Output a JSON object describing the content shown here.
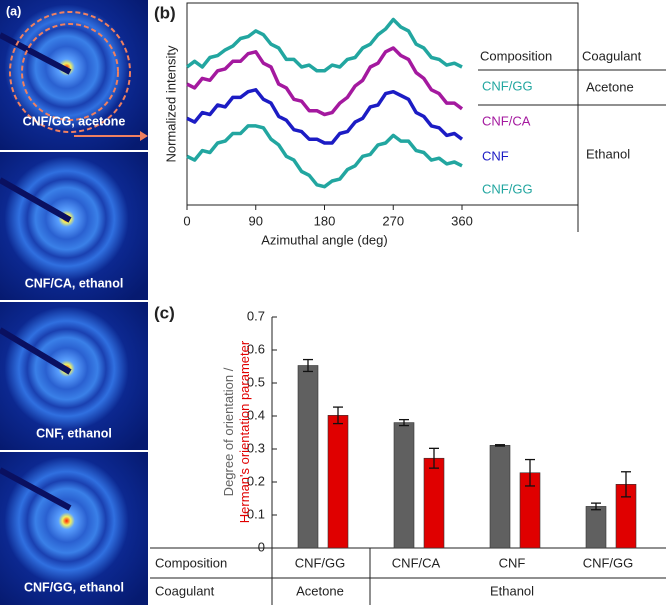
{
  "images_panel": {
    "label": "(a)",
    "captions": [
      "CNF/GG, acetone",
      "CNF/CA, ethanol",
      "CNF, ethanol",
      "CNF/GG, ethanol"
    ]
  },
  "chart_data": [
    {
      "type": "line",
      "panel_label": "(b)",
      "x_label": "Azimuthal angle (deg)",
      "y_label": "Normalized intensity",
      "x": [
        0,
        10,
        20,
        30,
        40,
        50,
        60,
        70,
        80,
        90,
        100,
        110,
        120,
        130,
        140,
        150,
        160,
        170,
        180,
        190,
        200,
        210,
        220,
        230,
        240,
        250,
        260,
        270,
        280,
        290,
        300,
        310,
        320,
        330,
        340,
        350,
        360
      ],
      "xlim": [
        0,
        360
      ],
      "xticks": [
        0,
        90,
        180,
        270,
        360
      ],
      "ylim": [
        0,
        100
      ],
      "table": {
        "headers": [
          "Composition",
          "Coagulant"
        ],
        "coagulants": [
          "Acetone",
          "Ethanol"
        ]
      },
      "series": [
        {
          "name": "CNF/GG",
          "color": "#22a6a0",
          "values": [
            70,
            73,
            70,
            75,
            76,
            79,
            81,
            85,
            86,
            89,
            87,
            82,
            80,
            74,
            74,
            70,
            71,
            68,
            68,
            71,
            70,
            74,
            75,
            80,
            82,
            87,
            90,
            95,
            91,
            89,
            82,
            80,
            75,
            74,
            71,
            72,
            70
          ]
        },
        {
          "name": "CNF/CA",
          "color": "#a4199f",
          "values": [
            61,
            59,
            64,
            63,
            68,
            69,
            73,
            73,
            77,
            78,
            72,
            70,
            61,
            59,
            53,
            52,
            47,
            47,
            45,
            46,
            51,
            54,
            60,
            63,
            70,
            72,
            78,
            80,
            76,
            74,
            67,
            64,
            58,
            56,
            51,
            51,
            48
          ]
        },
        {
          "name": "CNF",
          "color": "#1c1cc4",
          "values": [
            43,
            41,
            46,
            45,
            50,
            49,
            54,
            54,
            57,
            58,
            53,
            51,
            44,
            42,
            37,
            36,
            32,
            32,
            30,
            30,
            35,
            36,
            41,
            43,
            49,
            50,
            56,
            57,
            55,
            53,
            46,
            44,
            39,
            38,
            34,
            35,
            32
          ]
        },
        {
          "name": "CNF/GG",
          "color": "#22a6a0",
          "values": [
            23,
            21,
            26,
            25,
            30,
            31,
            35,
            35,
            39,
            39,
            38,
            32,
            29,
            23,
            21,
            15,
            13,
            8,
            7,
            10,
            11,
            16,
            18,
            23,
            24,
            29,
            30,
            34,
            31,
            31,
            26,
            25,
            21,
            22,
            19,
            20,
            18
          ]
        }
      ]
    },
    {
      "type": "bar",
      "panel_label": "(c)",
      "categories": [
        "CNF/GG",
        "CNF/CA",
        "CNF",
        "CNF/GG"
      ],
      "ylim": [
        0,
        0.7
      ],
      "yticks": [
        0,
        0.1,
        0.2,
        0.3,
        0.4,
        0.5,
        0.6,
        0.7
      ],
      "table": {
        "row_labels": [
          "Composition",
          "Coagulant"
        ],
        "coagulants": [
          "Acetone",
          "Ethanol"
        ]
      },
      "series": [
        {
          "name": "Degree of orientation /",
          "color": "#606060",
          "values": [
            0.553,
            0.38,
            0.311,
            0.126
          ],
          "errors": [
            0.018,
            0.009,
            0.002,
            0.01
          ]
        },
        {
          "name": "Herman's orientation parameter",
          "color": "#e00000",
          "values": [
            0.402,
            0.272,
            0.228,
            0.193
          ],
          "errors": [
            0.025,
            0.03,
            0.04,
            0.038
          ]
        }
      ]
    }
  ]
}
